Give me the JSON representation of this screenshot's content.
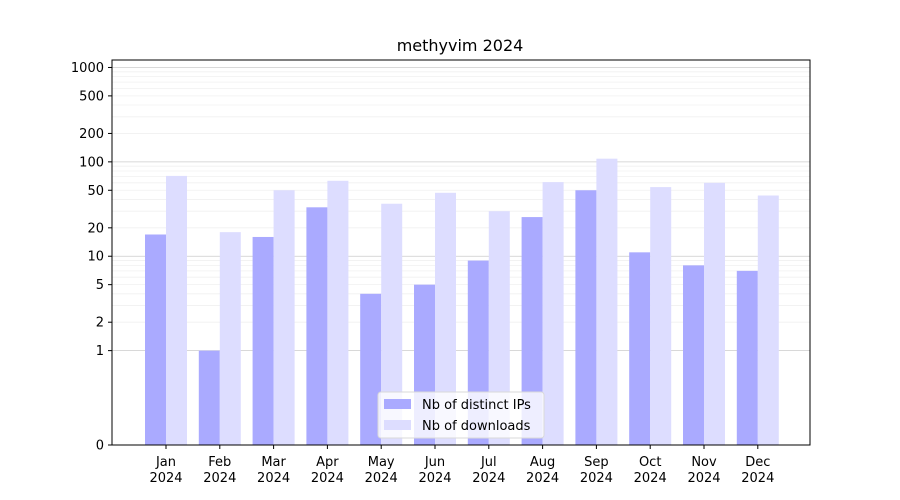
{
  "chart_data": {
    "type": "bar",
    "title": "methyvim 2024",
    "xlabel": "",
    "ylabel": "",
    "categories": [
      [
        "Jan",
        "2024"
      ],
      [
        "Feb",
        "2024"
      ],
      [
        "Mar",
        "2024"
      ],
      [
        "Apr",
        "2024"
      ],
      [
        "May",
        "2024"
      ],
      [
        "Jun",
        "2024"
      ],
      [
        "Jul",
        "2024"
      ],
      [
        "Aug",
        "2024"
      ],
      [
        "Sep",
        "2024"
      ],
      [
        "Oct",
        "2024"
      ],
      [
        "Nov",
        "2024"
      ],
      [
        "Dec",
        "2024"
      ]
    ],
    "series": [
      {
        "name": "Nb of distinct IPs",
        "color": "#aaaaff",
        "values": [
          17,
          1,
          16,
          33,
          4,
          5,
          9,
          26,
          50,
          11,
          8,
          7
        ]
      },
      {
        "name": "Nb of downloads",
        "color": "#ddddff",
        "values": [
          71,
          18,
          50,
          63,
          36,
          47,
          30,
          61,
          108,
          54,
          60,
          44
        ]
      }
    ],
    "y_scale": "symlog",
    "ylim": [
      0,
      1200
    ],
    "y_ticks": [
      0,
      1,
      2,
      5,
      10,
      20,
      50,
      100,
      200,
      500,
      1000
    ],
    "grid": true,
    "legend_position": "bottom-center"
  }
}
